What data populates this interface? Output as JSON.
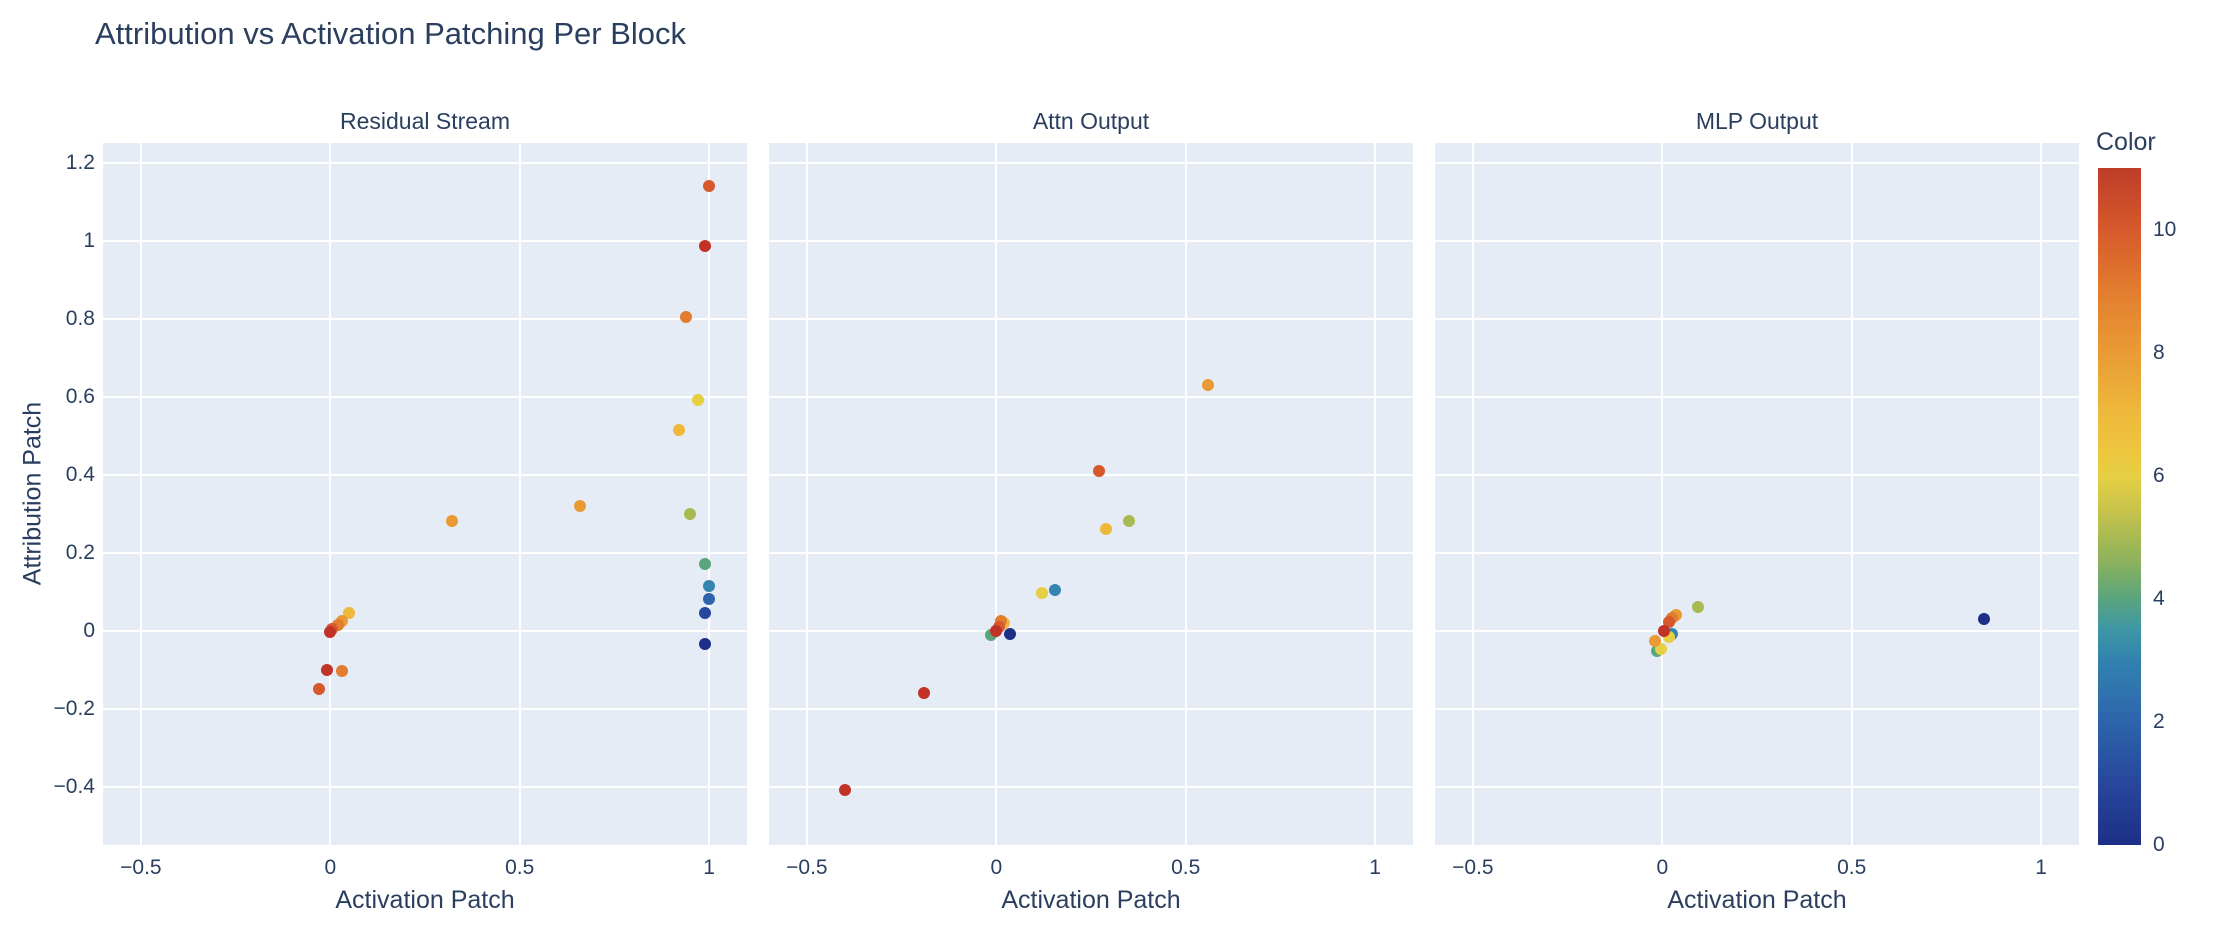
{
  "title": "Attribution vs Activation Patching Per Block",
  "axis": {
    "x_label": "Activation Patch",
    "y_label": "Attribution Patch"
  },
  "colors": {
    "font": "#2a3f5f",
    "plot_bg": "#e5ecf6",
    "grid": "#ffffff",
    "paper_bg": "#ffffff",
    "colormap": [
      "#1d2f87",
      "#27479c",
      "#2d64ab",
      "#3585ae",
      "#5aa57c",
      "#a9ba52",
      "#e6cf43",
      "#eeb83b",
      "#e99a35",
      "#e27c2e",
      "#d6592c",
      "#c13326"
    ]
  },
  "colorbar": {
    "title": "Color",
    "cmin": 0,
    "cmax": 11,
    "ticks": [
      0,
      2,
      4,
      6,
      8,
      10
    ],
    "gradient": [
      {
        "p": 0.0,
        "c": "#1d2f87"
      },
      {
        "p": 0.09,
        "c": "#27479c"
      },
      {
        "p": 0.18,
        "c": "#2d64ab"
      },
      {
        "p": 0.27,
        "c": "#3181b0"
      },
      {
        "p": 0.32,
        "c": "#3f97a4"
      },
      {
        "p": 0.365,
        "c": "#5aa57c"
      },
      {
        "p": 0.41,
        "c": "#84b061"
      },
      {
        "p": 0.455,
        "c": "#a9ba52"
      },
      {
        "p": 0.5,
        "c": "#cbc44a"
      },
      {
        "p": 0.545,
        "c": "#e6cf43"
      },
      {
        "p": 0.59,
        "c": "#eec43e"
      },
      {
        "p": 0.64,
        "c": "#eeb83b"
      },
      {
        "p": 0.73,
        "c": "#e99a35"
      },
      {
        "p": 0.82,
        "c": "#e27c2e"
      },
      {
        "p": 0.91,
        "c": "#d6592c"
      },
      {
        "p": 1.0,
        "c": "#bd3d28"
      }
    ]
  },
  "chart_data": [
    {
      "type": "scatter",
      "title": "Residual Stream",
      "xlabel": "Activation Patch",
      "ylabel": "Attribution Patch",
      "xlim": [
        -0.6,
        1.1
      ],
      "ylim": [
        -0.55,
        1.25
      ],
      "xticks": [
        {
          "v": -0.5,
          "label": "−0.5"
        },
        {
          "v": 0,
          "label": "0"
        },
        {
          "v": 0.5,
          "label": "0.5"
        },
        {
          "v": 1,
          "label": "1"
        }
      ],
      "yticks": [
        {
          "v": -0.4,
          "label": "−0.4"
        },
        {
          "v": -0.2,
          "label": "−0.2"
        },
        {
          "v": 0,
          "label": "0"
        },
        {
          "v": 0.2,
          "label": "0.2"
        },
        {
          "v": 0.4,
          "label": "0.4"
        },
        {
          "v": 0.6,
          "label": "0.6"
        },
        {
          "v": 0.8,
          "label": "0.8"
        },
        {
          "v": 1,
          "label": "1"
        },
        {
          "v": 1.2,
          "label": "1.2"
        }
      ],
      "points": [
        {
          "x": 0.05,
          "y": 0.045,
          "c": 7
        },
        {
          "x": 0.03,
          "y": 0.025,
          "c": 8
        },
        {
          "x": 0.02,
          "y": 0.015,
          "c": 9
        },
        {
          "x": 0.005,
          "y": 0.005,
          "c": 10
        },
        {
          "x": 0.0,
          "y": -0.005,
          "c": 11
        },
        {
          "x": -0.01,
          "y": -0.1,
          "c": 11
        },
        {
          "x": 0.03,
          "y": -0.105,
          "c": 9
        },
        {
          "x": -0.03,
          "y": -0.15,
          "c": 10
        },
        {
          "x": 0.32,
          "y": 0.28,
          "c": 8
        },
        {
          "x": 0.66,
          "y": 0.32,
          "c": 8
        },
        {
          "x": 0.92,
          "y": 0.515,
          "c": 7
        },
        {
          "x": 0.97,
          "y": 0.59,
          "c": 6
        },
        {
          "x": 0.95,
          "y": 0.3,
          "c": 5
        },
        {
          "x": 0.94,
          "y": 0.805,
          "c": 9
        },
        {
          "x": 0.99,
          "y": 0.985,
          "c": 11
        },
        {
          "x": 1.0,
          "y": 1.14,
          "c": 10
        },
        {
          "x": 0.99,
          "y": 0.17,
          "c": 4
        },
        {
          "x": 1.0,
          "y": 0.115,
          "c": 3
        },
        {
          "x": 1.0,
          "y": 0.08,
          "c": 2
        },
        {
          "x": 0.99,
          "y": 0.045,
          "c": 1
        },
        {
          "x": 0.99,
          "y": -0.035,
          "c": 0
        }
      ]
    },
    {
      "type": "scatter",
      "title": "Attn Output",
      "xlabel": "Activation Patch",
      "ylabel": "Attribution Patch",
      "xlim": [
        -0.6,
        1.1
      ],
      "ylim": [
        -0.55,
        1.25
      ],
      "xticks": [
        {
          "v": -0.5,
          "label": "−0.5"
        },
        {
          "v": 0,
          "label": "0"
        },
        {
          "v": 0.5,
          "label": "0.5"
        },
        {
          "v": 1,
          "label": "1"
        }
      ],
      "yticks": [
        {
          "v": -0.4,
          "label": "−0.4"
        },
        {
          "v": -0.2,
          "label": "−0.2"
        },
        {
          "v": 0,
          "label": "0"
        },
        {
          "v": 0.2,
          "label": "0.2"
        },
        {
          "v": 0.4,
          "label": "0.4"
        },
        {
          "v": 0.6,
          "label": "0.6"
        },
        {
          "v": 0.8,
          "label": "0.8"
        },
        {
          "v": 1,
          "label": "1"
        },
        {
          "v": 1.2,
          "label": "1.2"
        }
      ],
      "points": [
        {
          "x": -0.013,
          "y": -0.012,
          "c": 4
        },
        {
          "x": 0.02,
          "y": 0.02,
          "c": 7
        },
        {
          "x": 0.013,
          "y": 0.024,
          "c": 9
        },
        {
          "x": 0.006,
          "y": 0.01,
          "c": 10
        },
        {
          "x": 0.0,
          "y": 0.0,
          "c": 11
        },
        {
          "x": 0.035,
          "y": -0.008,
          "c": 0
        },
        {
          "x": 0.12,
          "y": 0.095,
          "c": 6
        },
        {
          "x": 0.155,
          "y": 0.105,
          "c": 3
        },
        {
          "x": 0.29,
          "y": 0.26,
          "c": 7
        },
        {
          "x": 0.35,
          "y": 0.28,
          "c": 5
        },
        {
          "x": 0.27,
          "y": 0.41,
          "c": 10
        },
        {
          "x": 0.56,
          "y": 0.63,
          "c": 8
        },
        {
          "x": -0.19,
          "y": -0.16,
          "c": 11
        },
        {
          "x": -0.4,
          "y": -0.41,
          "c": 11
        }
      ]
    },
    {
      "type": "scatter",
      "title": "MLP Output",
      "xlabel": "Activation Patch",
      "ylabel": "Attribution Patch",
      "xlim": [
        -0.6,
        1.1
      ],
      "ylim": [
        -0.55,
        1.25
      ],
      "xticks": [
        {
          "v": -0.5,
          "label": "−0.5"
        },
        {
          "v": 0,
          "label": "0"
        },
        {
          "v": 0.5,
          "label": "0.5"
        },
        {
          "v": 1,
          "label": "1"
        }
      ],
      "yticks": [
        {
          "v": -0.4,
          "label": "−0.4"
        },
        {
          "v": -0.2,
          "label": "−0.2"
        },
        {
          "v": 0,
          "label": "0"
        },
        {
          "v": 0.2,
          "label": "0.2"
        },
        {
          "v": 0.4,
          "label": "0.4"
        },
        {
          "v": 0.6,
          "label": "0.6"
        },
        {
          "v": 0.8,
          "label": "0.8"
        },
        {
          "v": 1,
          "label": "1"
        },
        {
          "v": 1.2,
          "label": "1.2"
        }
      ],
      "points": [
        {
          "x": 0.026,
          "y": -0.009,
          "c": 3
        },
        {
          "x": -0.013,
          "y": -0.053,
          "c": 4
        },
        {
          "x": -0.004,
          "y": -0.047,
          "c": 6
        },
        {
          "x": 0.018,
          "y": -0.017,
          "c": 6
        },
        {
          "x": -0.018,
          "y": -0.026,
          "c": 8
        },
        {
          "x": 0.035,
          "y": 0.04,
          "c": 8
        },
        {
          "x": 0.025,
          "y": 0.033,
          "c": 9
        },
        {
          "x": 0.018,
          "y": 0.021,
          "c": 10
        },
        {
          "x": 0.004,
          "y": 0.0,
          "c": 11
        },
        {
          "x": 0.095,
          "y": 0.06,
          "c": 5
        },
        {
          "x": 0.85,
          "y": 0.03,
          "c": 0
        }
      ]
    }
  ]
}
